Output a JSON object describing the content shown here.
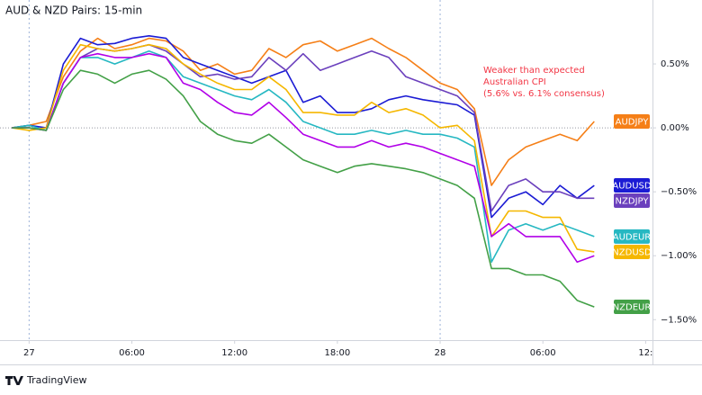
{
  "chart_data": {
    "type": "line",
    "title": "AUD & NZD Pairs: 15-min",
    "annotation": [
      "Weaker than expected",
      "Australian CPI",
      "(5.6% vs. 6.1% consensus)"
    ],
    "x": [
      -1,
      0,
      1,
      2,
      3,
      4,
      5,
      6,
      7,
      8,
      9,
      10,
      11,
      12,
      13,
      14,
      15,
      16,
      17,
      18,
      19,
      20,
      21,
      22,
      23,
      24,
      25,
      26,
      27,
      28,
      29,
      30,
      31,
      32,
      33
    ],
    "xlim": [
      -1.7,
      36.4
    ],
    "xticks": [
      {
        "value": 0,
        "label": "27"
      },
      {
        "value": 6,
        "label": "06:00"
      },
      {
        "value": 12,
        "label": "12:00"
      },
      {
        "value": 18,
        "label": "18:00"
      },
      {
        "value": 24,
        "label": "28"
      },
      {
        "value": 30,
        "label": "06:00"
      },
      {
        "value": 36,
        "label": "12:"
      }
    ],
    "ylim": [
      -1.66,
      1.0
    ],
    "yticks": [
      {
        "value": 0.5,
        "label": "0.50%"
      },
      {
        "value": 0,
        "label": "0.00%"
      },
      {
        "value": -0.5,
        "label": "−0.50%"
      },
      {
        "value": -1.0,
        "label": "−1.00%"
      },
      {
        "value": -1.5,
        "label": "−1.50%"
      }
    ],
    "baseline": 0,
    "series": [
      {
        "name": "AUDJPY",
        "color": "#f57f17",
        "values": [
          0,
          0.02,
          0.05,
          0.4,
          0.6,
          0.7,
          0.62,
          0.65,
          0.7,
          0.68,
          0.6,
          0.45,
          0.5,
          0.42,
          0.45,
          0.62,
          0.55,
          0.65,
          0.68,
          0.6,
          0.65,
          0.7,
          0.62,
          0.55,
          0.45,
          0.35,
          0.3,
          0.15,
          -0.45,
          -0.25,
          -0.15,
          -0.1,
          -0.05,
          -0.1,
          0.05
        ]
      },
      {
        "name": "AUDUSD",
        "color": "#1b1bd4",
        "values": [
          0,
          0.02,
          0,
          0.5,
          0.7,
          0.65,
          0.66,
          0.7,
          0.72,
          0.7,
          0.55,
          0.5,
          0.45,
          0.4,
          0.35,
          0.4,
          0.45,
          0.2,
          0.25,
          0.12,
          0.12,
          0.15,
          0.22,
          0.25,
          0.22,
          0.2,
          0.18,
          0.1,
          -0.7,
          -0.55,
          -0.5,
          -0.6,
          -0.45,
          -0.55,
          -0.45
        ]
      },
      {
        "name": "NZDJPY",
        "color": "#6b40bd",
        "values": [
          0,
          0,
          -0.02,
          0.35,
          0.55,
          0.62,
          0.6,
          0.62,
          0.65,
          0.6,
          0.5,
          0.4,
          0.42,
          0.38,
          0.4,
          0.55,
          0.45,
          0.58,
          0.45,
          0.5,
          0.55,
          0.6,
          0.55,
          0.4,
          0.35,
          0.3,
          0.25,
          0.12,
          -0.65,
          -0.45,
          -0.4,
          -0.5,
          -0.5,
          -0.55,
          -0.55
        ]
      },
      {
        "name": "AUDEUR",
        "color": "#26b8c2",
        "values": [
          0,
          0.02,
          -0.02,
          0.35,
          0.55,
          0.55,
          0.5,
          0.55,
          0.6,
          0.55,
          0.4,
          0.35,
          0.3,
          0.25,
          0.22,
          0.3,
          0.2,
          0.05,
          0,
          -0.05,
          -0.05,
          -0.02,
          -0.05,
          -0.02,
          -0.05,
          -0.05,
          -0.08,
          -0.15,
          -1.05,
          -0.8,
          -0.75,
          -0.8,
          -0.75,
          -0.8,
          -0.85
        ]
      },
      {
        "name": "NZDUSD",
        "color": "#f5b700",
        "values": [
          0,
          -0.02,
          0,
          0.45,
          0.65,
          0.62,
          0.6,
          0.62,
          0.65,
          0.62,
          0.5,
          0.42,
          0.35,
          0.3,
          0.3,
          0.4,
          0.3,
          0.12,
          0.12,
          0.1,
          0.1,
          0.2,
          0.12,
          0.15,
          0.1,
          0,
          0.02,
          -0.1,
          -0.85,
          -0.65,
          -0.65,
          -0.7,
          -0.7,
          -0.95,
          -0.97
        ]
      },
      {
        "color": "#b100e8",
        "values": [
          0,
          0,
          -0.02,
          0.35,
          0.55,
          0.58,
          0.55,
          0.55,
          0.58,
          0.55,
          0.35,
          0.3,
          0.2,
          0.12,
          0.1,
          0.2,
          0.08,
          -0.05,
          -0.1,
          -0.15,
          -0.15,
          -0.1,
          -0.15,
          -0.12,
          -0.15,
          -0.2,
          -0.25,
          -0.3,
          -0.85,
          -0.75,
          -0.85,
          -0.85,
          -0.85,
          -1.05,
          -1.0
        ]
      },
      {
        "name": "NZDEUR",
        "color": "#43a047",
        "values": [
          0,
          0,
          -0.02,
          0.3,
          0.45,
          0.42,
          0.35,
          0.42,
          0.45,
          0.38,
          0.25,
          0.05,
          -0.05,
          -0.1,
          -0.12,
          -0.05,
          -0.15,
          -0.25,
          -0.3,
          -0.35,
          -0.3,
          -0.28,
          -0.3,
          -0.32,
          -0.35,
          -0.4,
          -0.45,
          -0.55,
          -1.1,
          -1.1,
          -1.15,
          -1.15,
          -1.2,
          -1.35,
          -1.4
        ]
      }
    ]
  },
  "footer": {
    "brand": "TradingView"
  }
}
